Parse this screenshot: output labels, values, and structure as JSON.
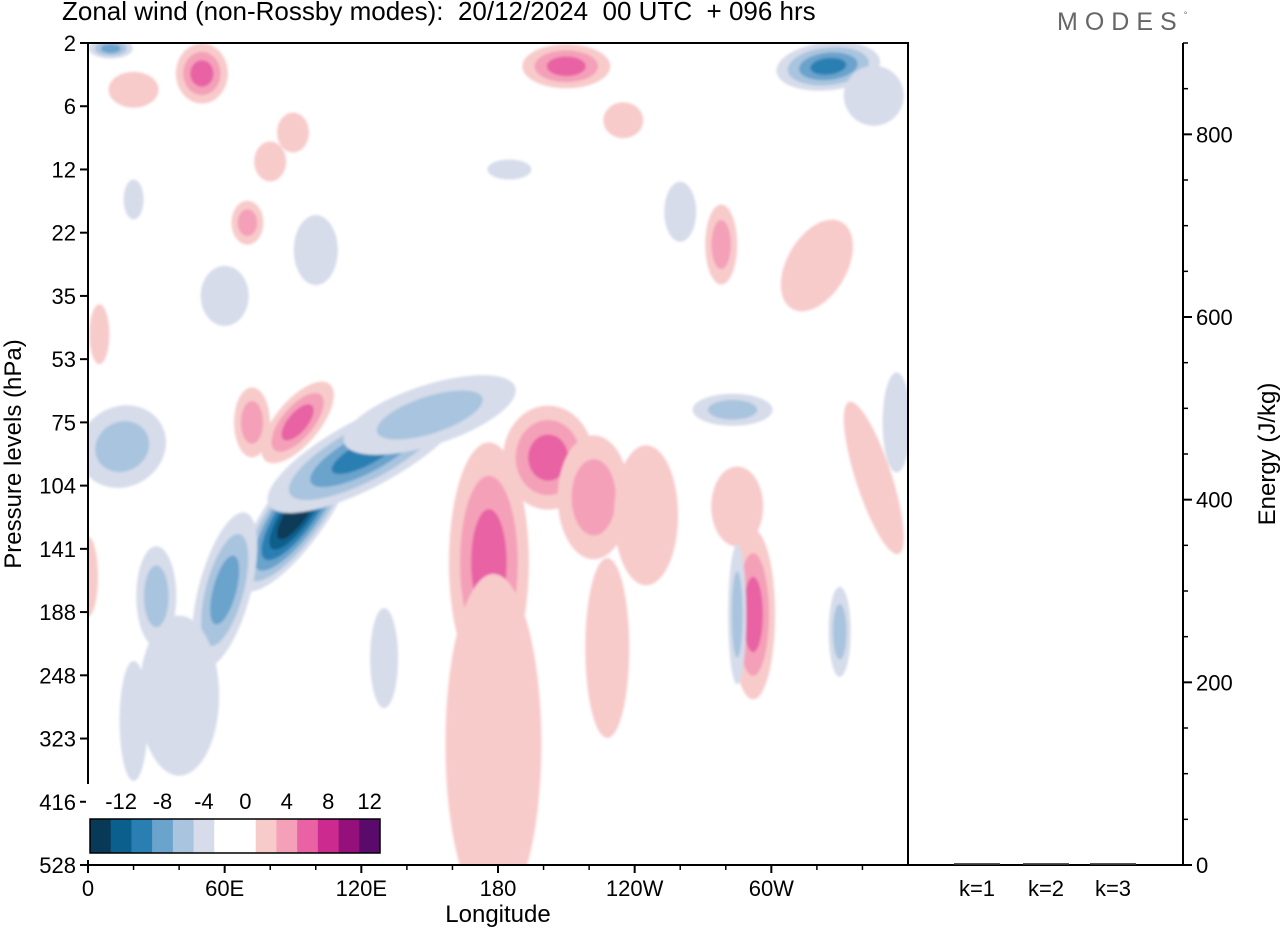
{
  "title": "Zonal wind (non-Rossby modes):  20/12/2024  00 UTC  + 096 hrs",
  "logo": {
    "text": "MODES",
    "mark": "°"
  },
  "colors": {
    "neg": [
      "#083a58",
      "#0b5f8c",
      "#2a7fb2",
      "#6aa3cc",
      "#a9c4de",
      "#d6dcea"
    ],
    "zero": "#ffffff",
    "pos": [
      "#f8cbcb",
      "#f4a0b8",
      "#e862a4",
      "#cc2a8e",
      "#95107a",
      "#5a0a6b"
    ]
  },
  "chart_data": [
    {
      "type": "heatmap",
      "variable": "Zonal wind (non-Rossby modes)",
      "xlabel": "Longitude",
      "ylabel": "Pressure levels (hPa)",
      "x_ticks": [
        "0",
        "60E",
        "120E",
        "180",
        "120W",
        "60W"
      ],
      "x_range_deg": [
        0,
        360
      ],
      "y_ticks": [
        "2",
        "6",
        "12",
        "22",
        "35",
        "53",
        "75",
        "104",
        "141",
        "188",
        "248",
        "323",
        "416",
        "528"
      ],
      "colorbar": {
        "labels": [
          "-12",
          "-8",
          "-4",
          "0",
          "4",
          "8",
          "12"
        ],
        "levels": [
          -14,
          -12,
          -10,
          -8,
          -6,
          -4,
          -2,
          0,
          2,
          4,
          6,
          8,
          10,
          12,
          14
        ]
      },
      "features": [
        {
          "name": "negative jet core",
          "lon": 90,
          "level": 120,
          "value": -14
        },
        {
          "name": "negative band",
          "lon": 120,
          "level": 90,
          "value": -8
        },
        {
          "name": "positive region",
          "lon": 170,
          "level": 160,
          "value": 6
        },
        {
          "name": "positive region",
          "lon": 200,
          "level": 90,
          "value": 6
        },
        {
          "name": "positive upper",
          "lon": 210,
          "level": 3,
          "value": 6
        },
        {
          "name": "negative upper",
          "lon": 325,
          "level": 3,
          "value": -8
        },
        {
          "name": "positive lobe",
          "lon": 292,
          "level": 190,
          "value": 6
        },
        {
          "name": "negative lobe",
          "lon": 318,
          "level": 205,
          "value": -4
        }
      ]
    },
    {
      "type": "bar",
      "ylabel": "Energy (J/kg)",
      "categories": [
        "k=1",
        "k=2",
        "k=3"
      ],
      "values": [
        2,
        2,
        2
      ],
      "ylim": [
        0,
        900
      ],
      "y_ticks": [
        0,
        200,
        400,
        600,
        800
      ]
    }
  ]
}
